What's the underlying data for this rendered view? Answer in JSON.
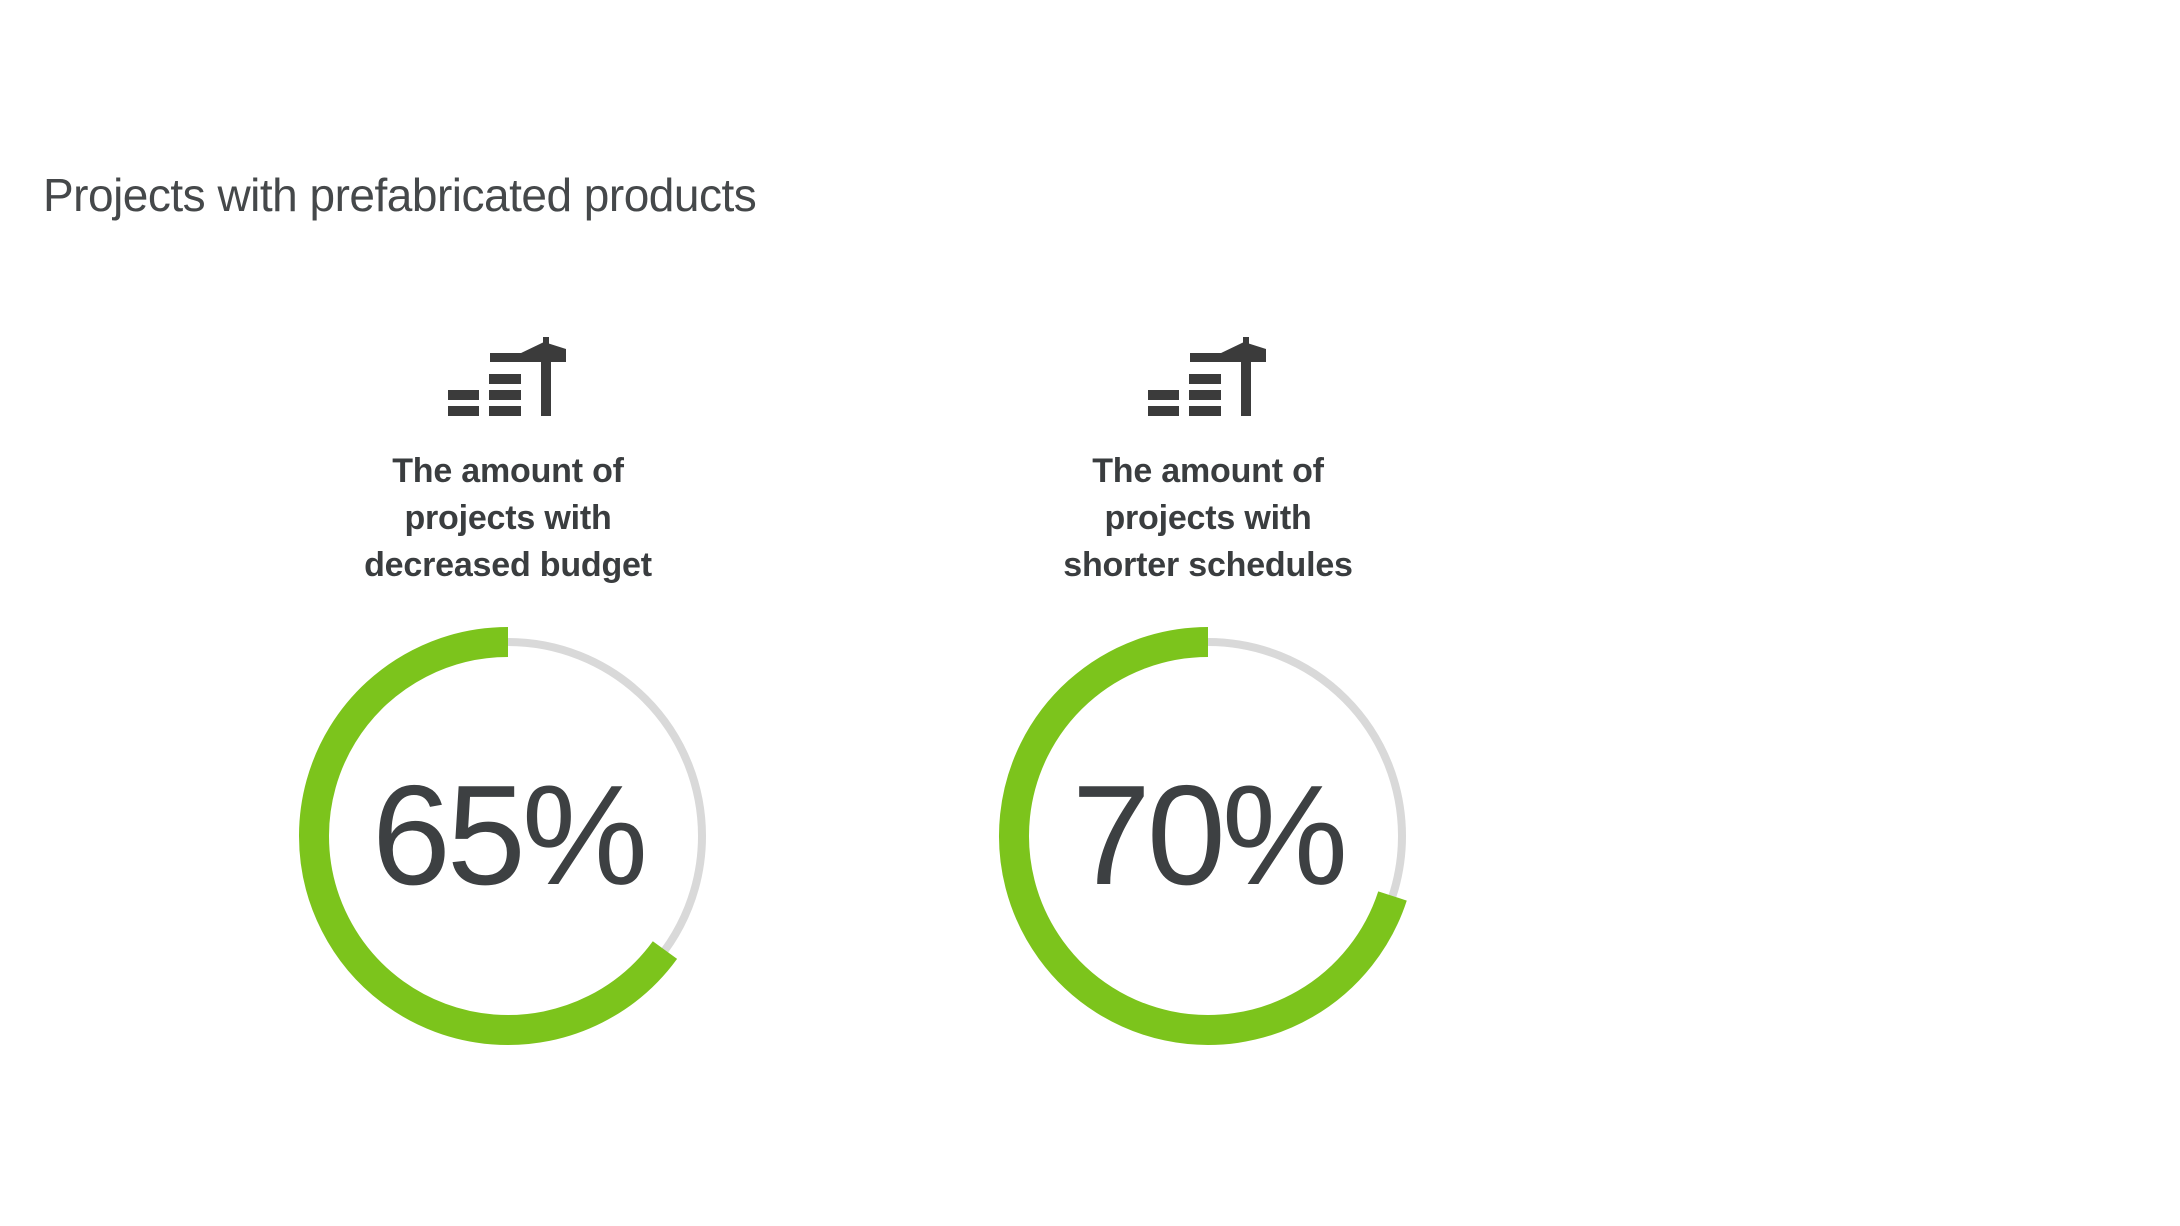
{
  "page": {
    "background": "#ffffff",
    "title": "Projects with prefabricated products"
  },
  "colors": {
    "accent_green": "#7CC41C",
    "track_gray": "#D9D9D9",
    "heading_gray": "#45484A",
    "label_dark": "#3A3D3F",
    "icon_dark": "#3B3B3B"
  },
  "chart_data": [
    {
      "type": "donut",
      "icon": "construction-crane-icon",
      "label": "The amount of projects with decreased budget",
      "label_lines": [
        "The amount of",
        "projects with",
        "decreased budget"
      ],
      "value_pct": 65,
      "value_label": "65%",
      "range": [
        0,
        100
      ],
      "arc_start": "top",
      "arc_direction": "counterclockwise",
      "arc_color": "#7CC41C",
      "track_color": "#D9D9D9"
    },
    {
      "type": "donut",
      "icon": "construction-crane-icon",
      "label": "The amount of projects with shorter schedules",
      "label_lines": [
        "The amount of",
        "projects with",
        "shorter schedules"
      ],
      "value_pct": 70,
      "value_label": "70%",
      "range": [
        0,
        100
      ],
      "arc_start": "top",
      "arc_direction": "counterclockwise",
      "arc_color": "#7CC41C",
      "track_color": "#D9D9D9"
    }
  ]
}
